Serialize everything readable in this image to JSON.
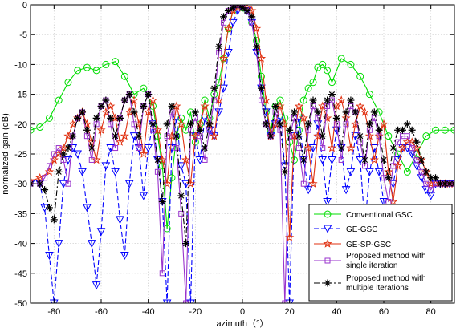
{
  "chart_data": {
    "type": "line",
    "xlabel": "azimuth（°）",
    "ylabel": "normalized gain (dB)",
    "xlim": [
      -90,
      90
    ],
    "ylim": [
      -50,
      0
    ],
    "xticks": [
      -80,
      -60,
      -40,
      -20,
      0,
      20,
      40,
      60,
      80
    ],
    "yticks": [
      0,
      -5,
      -10,
      -15,
      -20,
      -25,
      -30,
      -35,
      -40,
      -45,
      -50
    ],
    "grid": true,
    "legend_position": "bottom-right",
    "series": [
      {
        "name": "Conventional GSC",
        "color": "#00dd00",
        "line_style": "solid",
        "marker": "circle",
        "x": [
          -90,
          -86,
          -82,
          -78,
          -74,
          -70,
          -66,
          -62,
          -58,
          -54,
          -50,
          -46,
          -42,
          -38,
          -36,
          -34,
          -32,
          -30,
          -28,
          -26,
          -24,
          -22,
          -20,
          -18,
          -16,
          -14,
          -12,
          -10,
          -8,
          -6,
          -4,
          -2,
          0,
          2,
          4,
          6,
          8,
          10,
          12,
          14,
          16,
          18,
          20,
          22,
          24,
          26,
          28,
          30,
          32,
          34,
          36,
          38,
          42,
          46,
          50,
          54,
          58,
          62,
          66,
          70,
          74,
          78,
          82,
          86,
          90
        ],
        "y": [
          -21,
          -20.5,
          -19,
          -16,
          -13,
          -11,
          -10.5,
          -11,
          -10,
          -9.5,
          -12,
          -15,
          -14,
          -17,
          -22,
          -27,
          -37.5,
          -29,
          -22,
          -19,
          -21,
          -18,
          -23,
          -20,
          -16,
          -19,
          -15,
          -13,
          -9,
          -4,
          -1,
          0,
          -0.5,
          -1,
          -3,
          -6,
          -12,
          -18,
          -21,
          -17,
          -16,
          -19,
          -23,
          -26,
          -21,
          -16,
          -14,
          -13,
          -10.5,
          -10,
          -11,
          -13,
          -9,
          -10,
          -12,
          -15,
          -18,
          -22,
          -25,
          -28,
          -25,
          -22,
          -21,
          -21,
          -21
        ]
      },
      {
        "name": "GE-GSC",
        "color": "#0000ff",
        "line_style": "dashed",
        "marker": "triangle-down",
        "x": [
          -90,
          -86,
          -84,
          -82,
          -80,
          -78,
          -76,
          -74,
          -72,
          -70,
          -68,
          -66,
          -64,
          -62,
          -60,
          -58,
          -56,
          -54,
          -52,
          -50,
          -48,
          -46,
          -44,
          -42,
          -40,
          -38,
          -36,
          -34,
          -32,
          -30,
          -28,
          -26,
          -24,
          -22,
          -20,
          -18,
          -16,
          -14,
          -12,
          -10,
          -8,
          -6,
          -4,
          -2,
          0,
          2,
          4,
          6,
          8,
          10,
          12,
          14,
          16,
          18,
          20,
          22,
          24,
          26,
          28,
          30,
          32,
          34,
          36,
          38,
          40,
          42,
          44,
          46,
          48,
          50,
          52,
          54,
          56,
          58,
          60,
          62,
          64,
          66,
          68,
          70,
          72,
          74,
          76,
          78,
          80,
          82,
          84,
          86,
          88,
          90
        ],
        "y": [
          -30,
          -30,
          -34,
          -42,
          -50,
          -40,
          -30,
          -26,
          -24,
          -25,
          -28,
          -34,
          -40,
          -47,
          -38,
          -27,
          -24,
          -28,
          -36,
          -42,
          -30,
          -22,
          -24,
          -32,
          -24,
          -20,
          -26,
          -33,
          -50,
          -24,
          -19,
          -27,
          -30,
          -50,
          -22,
          -26,
          -19,
          -21,
          -22,
          -18,
          -14,
          -8,
          -3,
          -1,
          0,
          -1,
          -3,
          -8,
          -14,
          -18,
          -22,
          -20,
          -19,
          -27,
          -50,
          -22,
          -19,
          -26,
          -31,
          -24,
          -20,
          -26,
          -33,
          -26,
          -21,
          -24,
          -31,
          -28,
          -22,
          -26,
          -37,
          -28,
          -24,
          -28,
          -33,
          -46,
          -30,
          -26,
          -24,
          -24,
          -25,
          -27,
          -29,
          -31,
          -32,
          -30,
          -30,
          -30,
          -30,
          -30
        ]
      },
      {
        "name": "GE-SP-GSC",
        "color": "#e03010",
        "line_style": "solid",
        "marker": "star",
        "x": [
          -90,
          -86,
          -82,
          -80,
          -78,
          -76,
          -74,
          -72,
          -70,
          -68,
          -66,
          -64,
          -62,
          -60,
          -58,
          -56,
          -54,
          -52,
          -50,
          -48,
          -46,
          -44,
          -42,
          -40,
          -38,
          -36,
          -34,
          -32,
          -30,
          -28,
          -26,
          -24,
          -22,
          -20,
          -18,
          -16,
          -14,
          -12,
          -10,
          -8,
          -6,
          -4,
          -2,
          0,
          2,
          4,
          6,
          8,
          10,
          12,
          14,
          16,
          18,
          20,
          22,
          24,
          26,
          28,
          30,
          32,
          34,
          36,
          38,
          40,
          42,
          44,
          46,
          48,
          50,
          52,
          54,
          56,
          58,
          60,
          62,
          64,
          66,
          68,
          70,
          72,
          74,
          76,
          78,
          80,
          82,
          84,
          86,
          88,
          90
        ],
        "y": [
          -29.5,
          -29,
          -28,
          -26,
          -25,
          -24,
          -22,
          -20,
          -19,
          -18,
          -20,
          -23,
          -26,
          -21,
          -18,
          -17,
          -19,
          -23,
          -22,
          -18,
          -16,
          -20,
          -25,
          -18,
          -16,
          -21,
          -26,
          -30,
          -22,
          -17,
          -20,
          -26,
          -30,
          -22,
          -20,
          -17,
          -20,
          -22,
          -16,
          -9,
          -4,
          -1,
          -0.5,
          0,
          -0.5,
          -1,
          -4,
          -9,
          -16,
          -22,
          -20,
          -17,
          -20,
          -39,
          -22,
          -17,
          -19,
          -24,
          -30,
          -22,
          -17,
          -19,
          -24,
          -17,
          -16,
          -19,
          -24,
          -20,
          -17,
          -18,
          -22,
          -26,
          -22,
          -20,
          -28,
          -33,
          -27,
          -24,
          -23,
          -23,
          -24,
          -26,
          -28,
          -30,
          -30,
          -30,
          -30,
          -30,
          -30
        ]
      },
      {
        "name": "Proposed method with\nsingle iteration",
        "color": "#9933cc",
        "line_style": "solid",
        "marker": "square",
        "x": [
          -90,
          -86,
          -84,
          -82,
          -80,
          -78,
          -76,
          -74,
          -72,
          -70,
          -68,
          -66,
          -64,
          -62,
          -60,
          -58,
          -56,
          -54,
          -52,
          -50,
          -48,
          -46,
          -44,
          -42,
          -40,
          -38,
          -36,
          -34,
          -32,
          -30,
          -28,
          -26,
          -24,
          -22,
          -20,
          -18,
          -16,
          -14,
          -12,
          -10,
          -8,
          -6,
          -4,
          -2,
          0,
          2,
          4,
          6,
          8,
          10,
          12,
          14,
          16,
          18,
          20,
          22,
          24,
          26,
          28,
          30,
          32,
          34,
          36,
          38,
          40,
          42,
          44,
          46,
          48,
          50,
          52,
          54,
          56,
          58,
          60,
          62,
          64,
          66,
          68,
          70,
          72,
          74,
          76,
          78,
          80,
          82,
          84,
          86,
          88,
          90
        ],
        "y": [
          -30,
          -30,
          -29,
          -27,
          -25,
          -24,
          -26,
          -30,
          -22,
          -19,
          -18,
          -22,
          -26,
          -20,
          -17,
          -16,
          -20,
          -24,
          -19,
          -16,
          -15,
          -20,
          -24,
          -17,
          -15,
          -21,
          -28,
          -45,
          -22,
          -18,
          -24,
          -35,
          -50,
          -21,
          -19,
          -22,
          -26,
          -21,
          -16,
          -8,
          -3,
          -1,
          -0.5,
          0,
          -0.5,
          -1,
          -3,
          -8,
          -16,
          -20,
          -22,
          -18,
          -21,
          -50,
          -22,
          -19,
          -24,
          -30,
          -21,
          -17,
          -19,
          -24,
          -17,
          -16,
          -20,
          -26,
          -20,
          -17,
          -18,
          -23,
          -27,
          -21,
          -19,
          -22,
          -29,
          -33,
          -27,
          -23,
          -22,
          -22,
          -24,
          -26,
          -28,
          -30,
          -31,
          -30,
          -30,
          -30,
          -30,
          -30
        ]
      },
      {
        "name": "Proposed method with\nmultiple iterations",
        "color": "#000000",
        "line_style": "dashdot",
        "marker": "asterisk",
        "x": [
          -90,
          -86,
          -84,
          -82,
          -80,
          -78,
          -76,
          -74,
          -72,
          -70,
          -68,
          -66,
          -64,
          -62,
          -60,
          -58,
          -56,
          -54,
          -52,
          -50,
          -48,
          -46,
          -44,
          -42,
          -40,
          -38,
          -36,
          -34,
          -32,
          -30,
          -28,
          -26,
          -24,
          -22,
          -20,
          -18,
          -16,
          -14,
          -12,
          -10,
          -8,
          -6,
          -4,
          -2,
          0,
          2,
          4,
          6,
          8,
          10,
          12,
          14,
          16,
          18,
          20,
          22,
          24,
          26,
          28,
          30,
          32,
          34,
          36,
          38,
          40,
          42,
          44,
          46,
          48,
          50,
          52,
          54,
          56,
          58,
          60,
          62,
          64,
          66,
          68,
          70,
          72,
          74,
          76,
          78,
          80,
          82,
          84,
          86,
          88,
          90
        ],
        "y": [
          -30,
          -30,
          -31,
          -34,
          -36,
          -28,
          -25,
          -24,
          -22,
          -19,
          -18,
          -21,
          -24,
          -19,
          -17,
          -16,
          -19,
          -22,
          -19,
          -16,
          -15,
          -18,
          -22,
          -17,
          -15,
          -20,
          -26,
          -33,
          -20,
          -17,
          -22,
          -32,
          -40,
          -20,
          -18,
          -21,
          -24,
          -20,
          -14,
          -7,
          -2,
          -1,
          -0.5,
          0,
          -0.5,
          -1,
          -2,
          -7,
          -14,
          -20,
          -22,
          -17,
          -20,
          -28,
          -21,
          -18,
          -22,
          -26,
          -20,
          -16,
          -18,
          -22,
          -16,
          -15,
          -19,
          -24,
          -18,
          -16,
          -18,
          -22,
          -26,
          -20,
          -18,
          -21,
          -26,
          -29,
          -24,
          -21,
          -21,
          -20,
          -21,
          -23,
          -26,
          -28,
          -29,
          -29,
          -30,
          -30,
          -30,
          -30
        ]
      }
    ]
  }
}
